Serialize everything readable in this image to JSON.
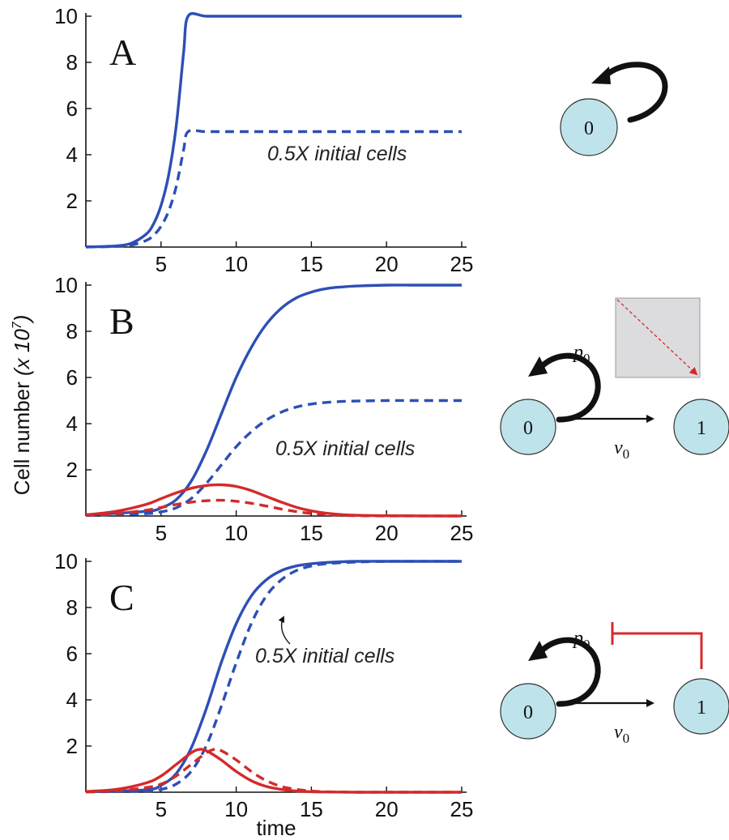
{
  "axes": {
    "ylabel": "Cell number",
    "ylabel_unit": "(x 10",
    "ylabel_exp": "7",
    "ylabel_close": ")",
    "xlabel": "time"
  },
  "colors": {
    "stem": "#2d4fb5",
    "progenitor": "#d42a2a",
    "node_fill": "#bfe3ea",
    "arrow": "#111111",
    "feedback": "#d42a2a"
  },
  "chart_data": [
    {
      "panel": "A",
      "type": "line",
      "xlim": [
        0,
        25
      ],
      "ylim": [
        0,
        10
      ],
      "xticks": [
        5,
        10,
        15,
        20,
        25
      ],
      "yticks": [
        2,
        4,
        6,
        8,
        10
      ],
      "annotation": "0.5X initial cells",
      "series": [
        {
          "color": "blue",
          "dash": false,
          "x": [
            0,
            1,
            2,
            3,
            4,
            4.5,
            5,
            5.5,
            6,
            6.5,
            6.8,
            8,
            10,
            15,
            20,
            25
          ],
          "y": [
            0.01,
            0.02,
            0.05,
            0.16,
            0.55,
            1.0,
            1.8,
            3.1,
            5.2,
            8.4,
            10,
            10,
            10,
            10,
            10,
            10
          ]
        },
        {
          "color": "blue",
          "dash": true,
          "x": [
            0,
            1,
            2,
            3,
            4,
            4.5,
            5,
            5.5,
            6,
            6.5,
            6.8,
            8,
            10,
            15,
            20,
            25
          ],
          "y": [
            0.005,
            0.01,
            0.03,
            0.08,
            0.28,
            0.5,
            0.9,
            1.55,
            2.6,
            4.2,
            5,
            5,
            5,
            5,
            5,
            5
          ]
        }
      ],
      "diagram": {
        "nodes": [
          "0"
        ]
      }
    },
    {
      "panel": "B",
      "type": "line",
      "xlim": [
        0,
        25
      ],
      "ylim": [
        0,
        10
      ],
      "xticks": [
        5,
        10,
        15,
        20,
        25
      ],
      "yticks": [
        2,
        4,
        6,
        8,
        10
      ],
      "annotation": "0.5X initial cells",
      "series": [
        {
          "color": "blue",
          "dash": false,
          "x": [
            0,
            4,
            5,
            6,
            7,
            8,
            9,
            10,
            11,
            12,
            13,
            14,
            15,
            16,
            17,
            18,
            20,
            22,
            25
          ],
          "y": [
            0.05,
            0.2,
            0.35,
            0.7,
            1.5,
            2.8,
            4.4,
            6.0,
            7.3,
            8.3,
            9.0,
            9.45,
            9.7,
            9.85,
            9.92,
            9.96,
            10,
            10,
            10
          ]
        },
        {
          "color": "blue",
          "dash": true,
          "x": [
            0,
            4,
            5,
            6,
            7,
            8,
            9,
            10,
            11,
            12,
            13,
            14,
            15,
            16,
            17,
            18,
            20,
            22,
            25
          ],
          "y": [
            0.02,
            0.1,
            0.18,
            0.35,
            0.75,
            1.4,
            2.2,
            3.0,
            3.65,
            4.15,
            4.5,
            4.72,
            4.85,
            4.92,
            4.96,
            4.98,
            5,
            5,
            5
          ]
        },
        {
          "color": "red",
          "dash": false,
          "x": [
            0,
            2,
            4,
            5,
            6,
            7,
            8,
            9,
            10,
            11,
            12,
            13,
            14,
            15,
            16,
            17,
            18,
            20,
            25
          ],
          "y": [
            0.05,
            0.2,
            0.5,
            0.75,
            1.0,
            1.2,
            1.32,
            1.35,
            1.28,
            1.1,
            0.85,
            0.6,
            0.38,
            0.22,
            0.12,
            0.06,
            0.03,
            0.01,
            0
          ]
        },
        {
          "color": "red",
          "dash": true,
          "x": [
            0,
            2,
            4,
            5,
            6,
            7,
            8,
            9,
            10,
            11,
            12,
            13,
            14,
            15,
            16,
            17,
            18,
            20,
            25
          ],
          "y": [
            0.03,
            0.1,
            0.25,
            0.37,
            0.5,
            0.6,
            0.66,
            0.68,
            0.64,
            0.55,
            0.43,
            0.3,
            0.19,
            0.11,
            0.06,
            0.03,
            0.015,
            0.005,
            0
          ]
        }
      ],
      "diagram": {
        "nodes": [
          "0",
          "1"
        ],
        "p": "p",
        "p_sub": "0",
        "v": "v",
        "v_sub": "0"
      }
    },
    {
      "panel": "C",
      "type": "line",
      "xlim": [
        0,
        25
      ],
      "ylim": [
        0,
        10
      ],
      "xticks": [
        5,
        10,
        15,
        20,
        25
      ],
      "yticks": [
        2,
        4,
        6,
        8,
        10
      ],
      "annotation": "0.5X initial cells",
      "series": [
        {
          "color": "blue",
          "dash": false,
          "x": [
            0,
            4,
            5,
            6,
            7,
            8,
            9,
            10,
            11,
            12,
            13,
            14,
            15,
            16,
            18,
            20,
            25
          ],
          "y": [
            0.02,
            0.1,
            0.3,
            0.8,
            1.9,
            3.6,
            5.6,
            7.3,
            8.5,
            9.2,
            9.6,
            9.8,
            9.9,
            9.95,
            10,
            10,
            10
          ]
        },
        {
          "color": "blue",
          "dash": true,
          "x": [
            0,
            4,
            5,
            6,
            7,
            8,
            9,
            10,
            11,
            12,
            13,
            14,
            15,
            16,
            18,
            20,
            25
          ],
          "y": [
            0.01,
            0.05,
            0.12,
            0.35,
            0.9,
            2.0,
            3.7,
            5.6,
            7.3,
            8.5,
            9.2,
            9.6,
            9.8,
            9.9,
            9.97,
            10,
            10
          ]
        },
        {
          "color": "red",
          "dash": false,
          "x": [
            0,
            2,
            4,
            5,
            6,
            7,
            7.5,
            8,
            9,
            10,
            11,
            12,
            13,
            14,
            15,
            16,
            18,
            20,
            25
          ],
          "y": [
            0.03,
            0.12,
            0.4,
            0.7,
            1.2,
            1.7,
            1.85,
            1.8,
            1.4,
            0.9,
            0.5,
            0.25,
            0.12,
            0.05,
            0.02,
            0.01,
            0,
            0,
            0
          ]
        },
        {
          "color": "red",
          "dash": true,
          "x": [
            0,
            2,
            4,
            5,
            6,
            7,
            8,
            8.5,
            9,
            10,
            11,
            12,
            13,
            14,
            15,
            16,
            18,
            20,
            25
          ],
          "y": [
            0.02,
            0.06,
            0.2,
            0.35,
            0.7,
            1.2,
            1.7,
            1.85,
            1.8,
            1.4,
            0.9,
            0.5,
            0.25,
            0.12,
            0.05,
            0.02,
            0,
            0,
            0
          ]
        }
      ],
      "diagram": {
        "nodes": [
          "0",
          "1"
        ],
        "p": "p",
        "p_sub": "0",
        "v": "v",
        "v_sub": "0"
      }
    }
  ]
}
